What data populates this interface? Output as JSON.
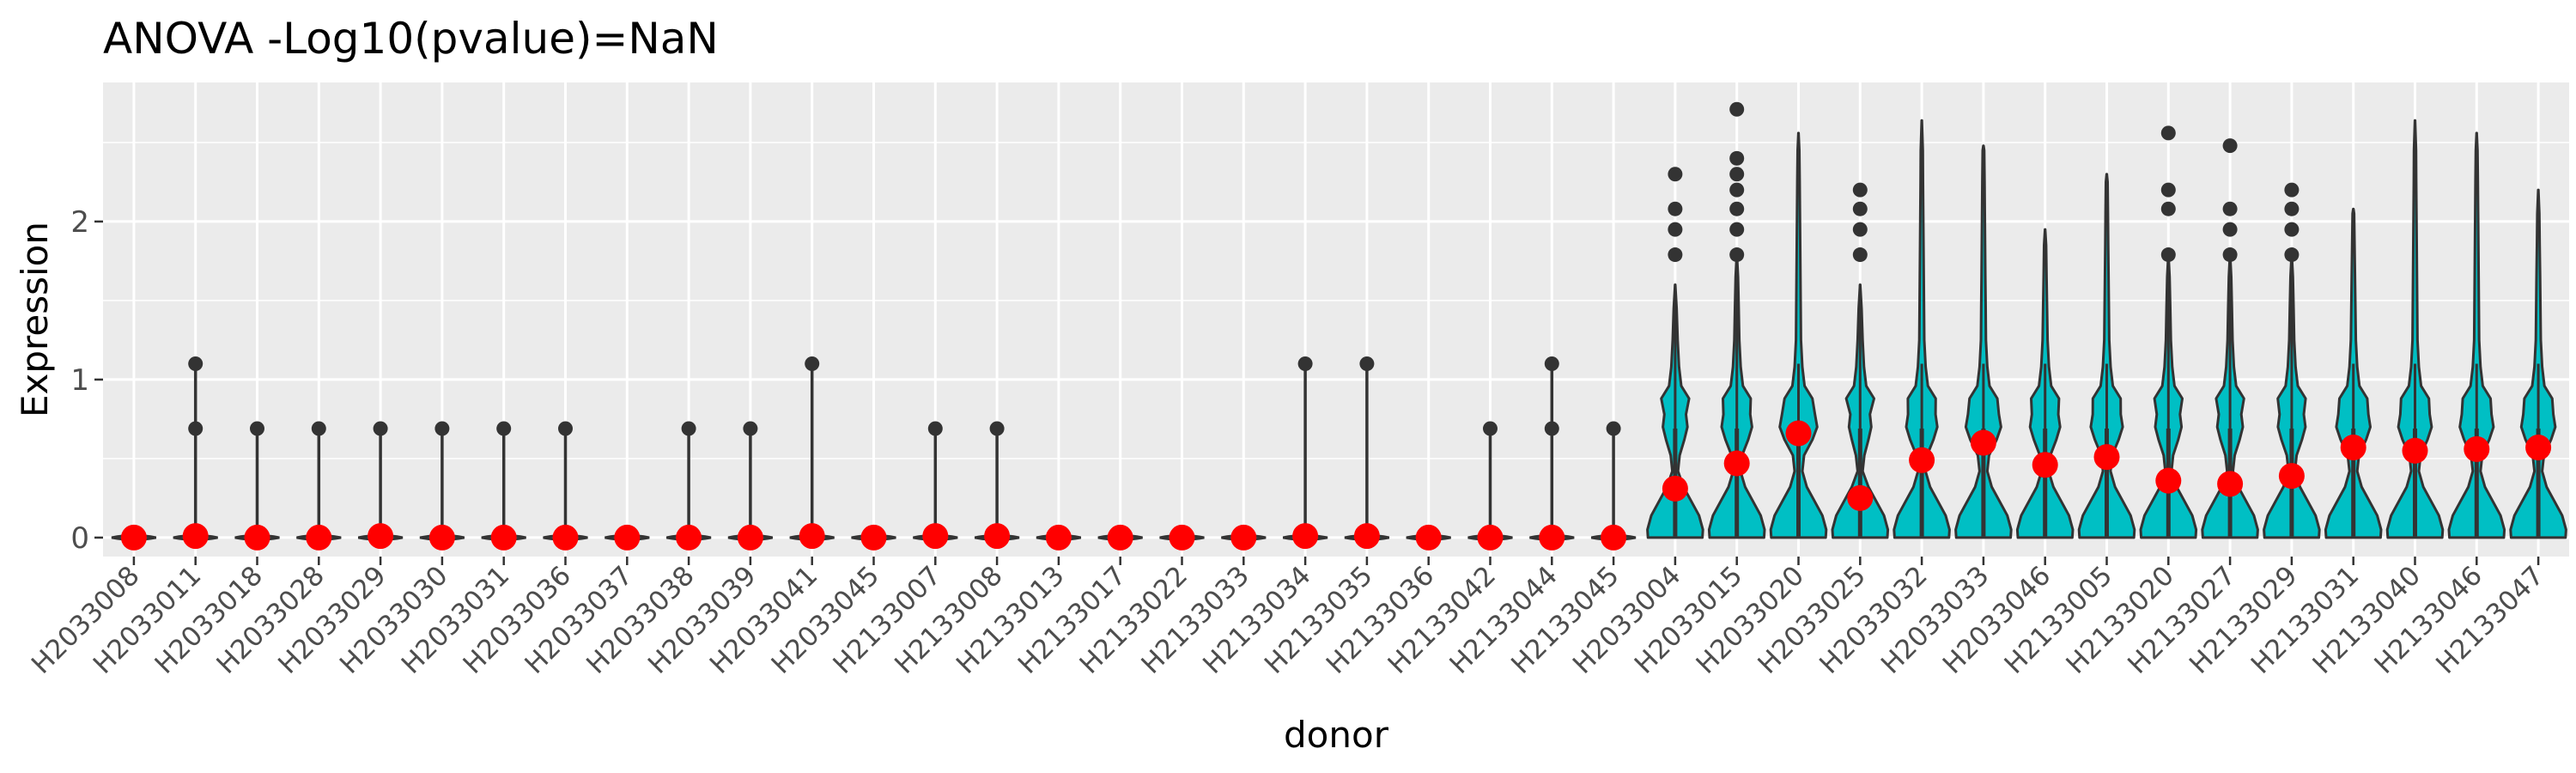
{
  "chart_data": {
    "type": "violin",
    "title": "ANOVA -Log10(pvalue)=NaN",
    "xlabel": "donor",
    "ylabel": "Expression",
    "ylim": [
      -0.12,
      2.88
    ],
    "yticks": [
      0,
      1,
      2
    ],
    "grid": true,
    "legend": "none",
    "colors": {
      "panel_background": "#ebebeb",
      "grid": "#ffffff",
      "violin_fill": "#00bfc4",
      "violin_outline": "#333333",
      "outlier": "#333333",
      "mean_point": "#ff0000",
      "tick_label": "#4d4d4d"
    },
    "categories": [
      "H2033008",
      "H2033011",
      "H2033018",
      "H2033028",
      "H2033029",
      "H2033030",
      "H2033031",
      "H2033036",
      "H2033037",
      "H2033038",
      "H2033039",
      "H2033041",
      "H2033045",
      "H2133007",
      "H2133008",
      "H2133013",
      "H2133017",
      "H2133022",
      "H2133033",
      "H2133034",
      "H2133035",
      "H2133036",
      "H2133042",
      "H2133044",
      "H2133045",
      "H2033004",
      "H2033015",
      "H2033020",
      "H2033025",
      "H2033032",
      "H2033033",
      "H2033046",
      "H2133005",
      "H2133020",
      "H2133027",
      "H2133029",
      "H2133031",
      "H2133040",
      "H2133046",
      "H2133047"
    ],
    "means": [
      0.0,
      0.01,
      0.0,
      0.0,
      0.01,
      0.0,
      0.0,
      0.0,
      0.0,
      0.0,
      0.0,
      0.01,
      0.0,
      0.01,
      0.01,
      0.0,
      0.0,
      0.0,
      0.0,
      0.01,
      0.01,
      0.0,
      0.0,
      0.0,
      0.0,
      0.31,
      0.47,
      0.66,
      0.25,
      0.49,
      0.6,
      0.46,
      0.51,
      0.36,
      0.34,
      0.39,
      0.57,
      0.55,
      0.56,
      0.57
    ],
    "outliers": [
      [],
      [
        0.69,
        1.1
      ],
      [
        0.69
      ],
      [
        0.69
      ],
      [
        0.69
      ],
      [
        0.69
      ],
      [
        0.69
      ],
      [
        0.69
      ],
      [],
      [
        0.69
      ],
      [
        0.69
      ],
      [
        1.1
      ],
      [],
      [
        0.69
      ],
      [
        0.69
      ],
      [],
      [],
      [],
      [],
      [
        1.1
      ],
      [
        1.1
      ],
      [],
      [
        0.69
      ],
      [
        0.69,
        1.1
      ],
      [
        0.69
      ],
      [
        1.79,
        1.95,
        2.08,
        2.3
      ],
      [
        1.79,
        1.95,
        2.08,
        2.2,
        2.3,
        2.4,
        2.71
      ],
      [],
      [
        1.79,
        1.95,
        2.08,
        2.2
      ],
      [],
      [],
      [],
      [],
      [
        1.79,
        2.08,
        2.2,
        2.56
      ],
      [
        1.79,
        1.95,
        2.08,
        2.48
      ],
      [
        1.79,
        1.95,
        2.08,
        2.2
      ],
      [],
      [],
      [],
      []
    ],
    "violin_max": [
      0.02,
      0.02,
      0.02,
      0.02,
      0.02,
      0.02,
      0.02,
      0.02,
      0.02,
      0.02,
      0.02,
      0.02,
      0.02,
      0.02,
      0.02,
      0.02,
      0.02,
      0.02,
      0.02,
      0.02,
      0.02,
      0.02,
      0.02,
      0.02,
      0.02,
      1.6,
      1.79,
      2.56,
      1.6,
      2.64,
      2.48,
      1.95,
      2.3,
      1.79,
      1.79,
      1.79,
      2.08,
      2.64,
      2.56,
      2.2
    ]
  }
}
